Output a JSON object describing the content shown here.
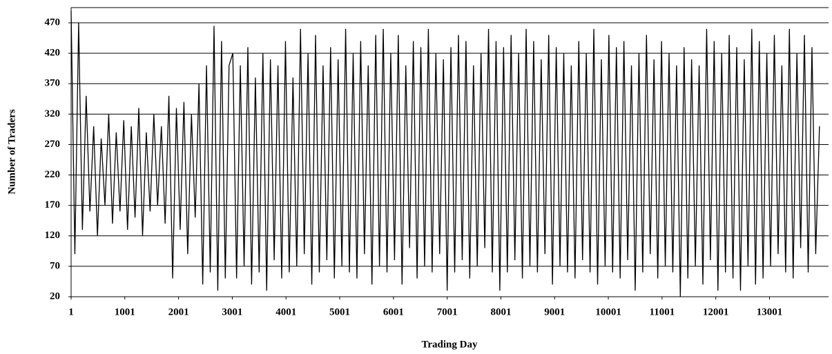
{
  "chart_data": {
    "type": "line",
    "x_label": "Trading Day",
    "y_label": "Number of Traders",
    "xlim": [
      1,
      14100
    ],
    "ylim": [
      20,
      495
    ],
    "xticks": [
      1,
      1001,
      2001,
      3001,
      4001,
      5001,
      6001,
      7001,
      8001,
      9001,
      10001,
      11001,
      12001,
      13001
    ],
    "yticks": [
      20,
      70,
      120,
      170,
      220,
      270,
      320,
      370,
      420,
      470
    ],
    "grid": true,
    "x": [
      1,
      71,
      141,
      211,
      281,
      351,
      421,
      491,
      561,
      631,
      701,
      771,
      841,
      911,
      981,
      1051,
      1121,
      1191,
      1261,
      1331,
      1401,
      1471,
      1541,
      1611,
      1681,
      1751,
      1821,
      1891,
      1961,
      2031,
      2101,
      2171,
      2241,
      2311,
      2381,
      2451,
      2521,
      2591,
      2661,
      2731,
      2801,
      2871,
      2941,
      3011,
      3081,
      3151,
      3221,
      3291,
      3361,
      3431,
      3501,
      3571,
      3641,
      3711,
      3781,
      3851,
      3921,
      3991,
      4061,
      4131,
      4201,
      4271,
      4341,
      4411,
      4481,
      4551,
      4621,
      4691,
      4761,
      4831,
      4901,
      4971,
      5041,
      5111,
      5181,
      5251,
      5321,
      5391,
      5461,
      5531,
      5601,
      5671,
      5741,
      5811,
      5881,
      5951,
      6021,
      6091,
      6161,
      6231,
      6301,
      6371,
      6441,
      6511,
      6581,
      6651,
      6721,
      6791,
      6861,
      6931,
      7001,
      7071,
      7141,
      7211,
      7281,
      7351,
      7421,
      7491,
      7561,
      7631,
      7701,
      7771,
      7841,
      7911,
      7981,
      8051,
      8121,
      8191,
      8261,
      8331,
      8401,
      8471,
      8541,
      8611,
      8681,
      8751,
      8821,
      8891,
      8961,
      9031,
      9101,
      9171,
      9241,
      9311,
      9381,
      9451,
      9521,
      9591,
      9661,
      9731,
      9801,
      9871,
      9941,
      10011,
      10081,
      10151,
      10221,
      10291,
      10361,
      10431,
      10501,
      10571,
      10641,
      10711,
      10781,
      10851,
      10921,
      10991,
      11061,
      11131,
      11201,
      11271,
      11341,
      11411,
      11481,
      11551,
      11621,
      11691,
      11761,
      11831,
      11901,
      11971,
      12041,
      12111,
      12181,
      12251,
      12321,
      12391,
      12461,
      12531,
      12601,
      12671,
      12741,
      12811,
      12881,
      12951,
      13021,
      13091,
      13161,
      13231,
      13301,
      13371,
      13441,
      13511,
      13581,
      13651,
      13721,
      13791,
      13861,
      13931
    ],
    "series": [
      {
        "name": "Number of Traders",
        "color": "#000000",
        "values": [
          490,
          90,
          470,
          130,
          350,
          160,
          300,
          120,
          280,
          170,
          320,
          140,
          290,
          160,
          310,
          130,
          300,
          150,
          330,
          120,
          290,
          160,
          320,
          170,
          300,
          140,
          350,
          50,
          330,
          130,
          340,
          90,
          320,
          150,
          370,
          40,
          400,
          60,
          465,
          30,
          440,
          50,
          400,
          420,
          50,
          400,
          70,
          430,
          40,
          380,
          60,
          420,
          30,
          410,
          80,
          400,
          50,
          440,
          60,
          380,
          70,
          460,
          90,
          420,
          40,
          450,
          60,
          400,
          80,
          430,
          50,
          410,
          70,
          460,
          60,
          420,
          50,
          440,
          90,
          400,
          40,
          450,
          70,
          460,
          60,
          420,
          80,
          450,
          40,
          400,
          100,
          440,
          50,
          430,
          70,
          460,
          60,
          420,
          90,
          410,
          30,
          430,
          60,
          450,
          80,
          440,
          50,
          400,
          70,
          420,
          100,
          460,
          60,
          440,
          30,
          430,
          60,
          450,
          80,
          420,
          50,
          460,
          70,
          440,
          60,
          410,
          90,
          450,
          40,
          430,
          70,
          420,
          60,
          400,
          50,
          440,
          80,
          420,
          60,
          460,
          40,
          410,
          70,
          450,
          60,
          430,
          50,
          440,
          80,
          400,
          30,
          420,
          60,
          450,
          90,
          410,
          50,
          440,
          70,
          420,
          60,
          400,
          20,
          430,
          50,
          410,
          70,
          400,
          40,
          460,
          80,
          440,
          30,
          420,
          60,
          450,
          50,
          430,
          30,
          410,
          70,
          460,
          40,
          440,
          50,
          420,
          70,
          450,
          90,
          400,
          60,
          460,
          50,
          420,
          100,
          450,
          60,
          430,
          90,
          300
        ]
      }
    ]
  }
}
